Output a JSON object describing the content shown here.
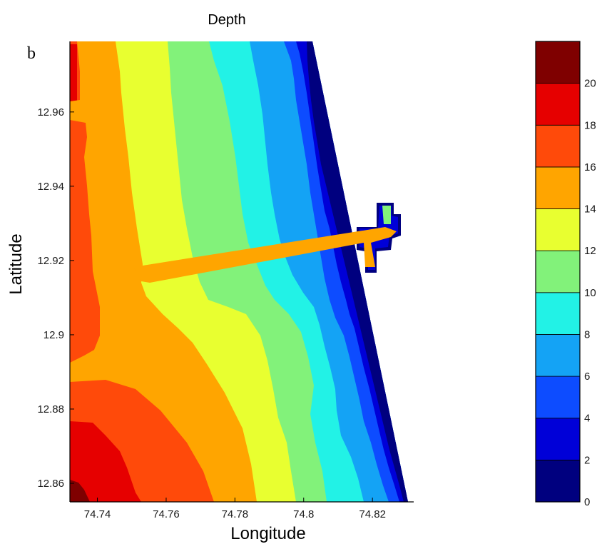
{
  "chart_data": {
    "type": "contour",
    "title": "Depth",
    "panel_label": "b",
    "xlabel": "Longitude",
    "ylabel": "Latitude",
    "xlim": [
      74.732,
      74.832
    ],
    "ylim": [
      12.855,
      12.979
    ],
    "x_ticks": [
      {
        "value": 74.74,
        "label": "74.74"
      },
      {
        "value": 74.76,
        "label": "74.76"
      },
      {
        "value": 74.78,
        "label": "74.78"
      },
      {
        "value": 74.8,
        "label": "74.8"
      },
      {
        "value": 74.82,
        "label": "74.82"
      }
    ],
    "y_ticks": [
      {
        "value": 12.86,
        "label": "12.86"
      },
      {
        "value": 12.88,
        "label": "12.88"
      },
      {
        "value": 12.9,
        "label": "12.9"
      },
      {
        "value": 12.92,
        "label": "12.92"
      },
      {
        "value": 12.94,
        "label": "12.94"
      },
      {
        "value": 12.96,
        "label": "12.96"
      }
    ],
    "colorbar": {
      "min": 0,
      "max": 22,
      "ticks": [
        {
          "value": 0,
          "label": "0"
        },
        {
          "value": 2,
          "label": "2"
        },
        {
          "value": 4,
          "label": "4"
        },
        {
          "value": 6,
          "label": "6"
        },
        {
          "value": 8,
          "label": "8"
        },
        {
          "value": 10,
          "label": "10"
        },
        {
          "value": 12,
          "label": "12"
        },
        {
          "value": 14,
          "label": "14"
        },
        {
          "value": 16,
          "label": "16"
        },
        {
          "value": 18,
          "label": "18"
        },
        {
          "value": 20,
          "label": "20"
        }
      ],
      "levels": [
        {
          "from": 0,
          "to": 2,
          "color": "#00007f"
        },
        {
          "from": 2,
          "to": 4,
          "color": "#0000d8"
        },
        {
          "from": 4,
          "to": 6,
          "color": "#0d4cff"
        },
        {
          "from": 6,
          "to": 8,
          "color": "#14a3f5"
        },
        {
          "from": 8,
          "to": 10,
          "color": "#22f2e6"
        },
        {
          "from": 10,
          "to": 12,
          "color": "#82f27a"
        },
        {
          "from": 12,
          "to": 14,
          "color": "#e8ff30"
        },
        {
          "from": 14,
          "to": 16,
          "color": "#ffa500"
        },
        {
          "from": 16,
          "to": 18,
          "color": "#ff4a0a"
        },
        {
          "from": 18,
          "to": 20,
          "color": "#e60000"
        },
        {
          "from": 20,
          "to": 22,
          "color": "#7f0000"
        }
      ]
    },
    "depth_bands": [
      {
        "band": "14-16",
        "color": "#ffa500"
      },
      {
        "band": "12-14",
        "color": "#e8ff30"
      },
      {
        "band": "10-12",
        "color": "#82f27a"
      },
      {
        "band": "8-10",
        "color": "#22f2e6"
      },
      {
        "band": "6-8",
        "color": "#14a3f5"
      },
      {
        "band": "4-6",
        "color": "#0d4cff"
      },
      {
        "band": "2-4",
        "color": "#0000d8"
      },
      {
        "band": "0-2",
        "color": "#00007f"
      }
    ],
    "features": {
      "channel": {
        "depth_band": "14-16",
        "color": "#ffa500"
      },
      "harbor_basin": {
        "depth_band": "10-12",
        "color": "#82f27a"
      }
    }
  }
}
